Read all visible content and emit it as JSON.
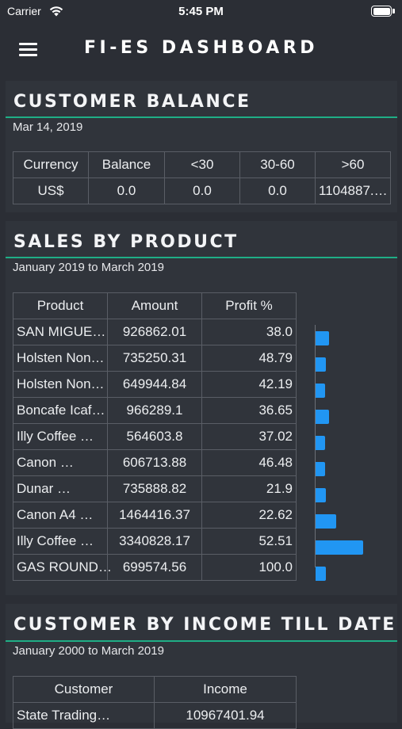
{
  "status_bar": {
    "carrier": "Carrier",
    "time": "5:45 PM"
  },
  "nav": {
    "title": "FI-ES DASHBOARD"
  },
  "customer_balance": {
    "title": "CUSTOMER BALANCE",
    "date": "Mar 14, 2019",
    "headers": [
      "Currency",
      "Balance",
      "<30",
      "30-60",
      ">60"
    ],
    "row": [
      "US$",
      "0.0",
      "0.0",
      "0.0",
      "1104887.…"
    ]
  },
  "sales_by_product": {
    "title": "SALES BY PRODUCT",
    "period": "January 2019 to March 2019",
    "headers": [
      "Product",
      "Amount",
      "Profit %"
    ],
    "rows": [
      {
        "product": "SAN MIGUE…",
        "amount": "926862.01",
        "profit": "38.0"
      },
      {
        "product": "Holsten Non…",
        "amount": "735250.31",
        "profit": "48.79"
      },
      {
        "product": "Holsten Non…",
        "amount": "649944.84",
        "profit": "42.19"
      },
      {
        "product": "Boncafe Icaf…",
        "amount": "966289.1",
        "profit": "36.65"
      },
      {
        "product": "Illy Coffee …",
        "amount": "564603.8",
        "profit": "37.02"
      },
      {
        "product": "Canon …",
        "amount": "606713.88",
        "profit": "46.48"
      },
      {
        "product": "Dunar …",
        "amount": "735888.82",
        "profit": "21.9"
      },
      {
        "product": "Canon A4 …",
        "amount": "1464416.37",
        "profit": "22.62"
      },
      {
        "product": "Illy Coffee …",
        "amount": "3340828.17",
        "profit": "52.51"
      },
      {
        "product": "GAS ROUND…",
        "amount": "699574.56",
        "profit": "100.0"
      }
    ],
    "bar_color": "#2196f3"
  },
  "customer_by_income": {
    "title": "CUSTOMER BY INCOME TILL DATE",
    "period": "January 2000 to March 2019",
    "headers": [
      "Customer",
      "Income"
    ],
    "first_row_partial": [
      "State Trading…",
      "10967401.94"
    ]
  },
  "colors": {
    "background": "#2b2e35",
    "card": "#30343b",
    "accent": "#1fae86"
  }
}
